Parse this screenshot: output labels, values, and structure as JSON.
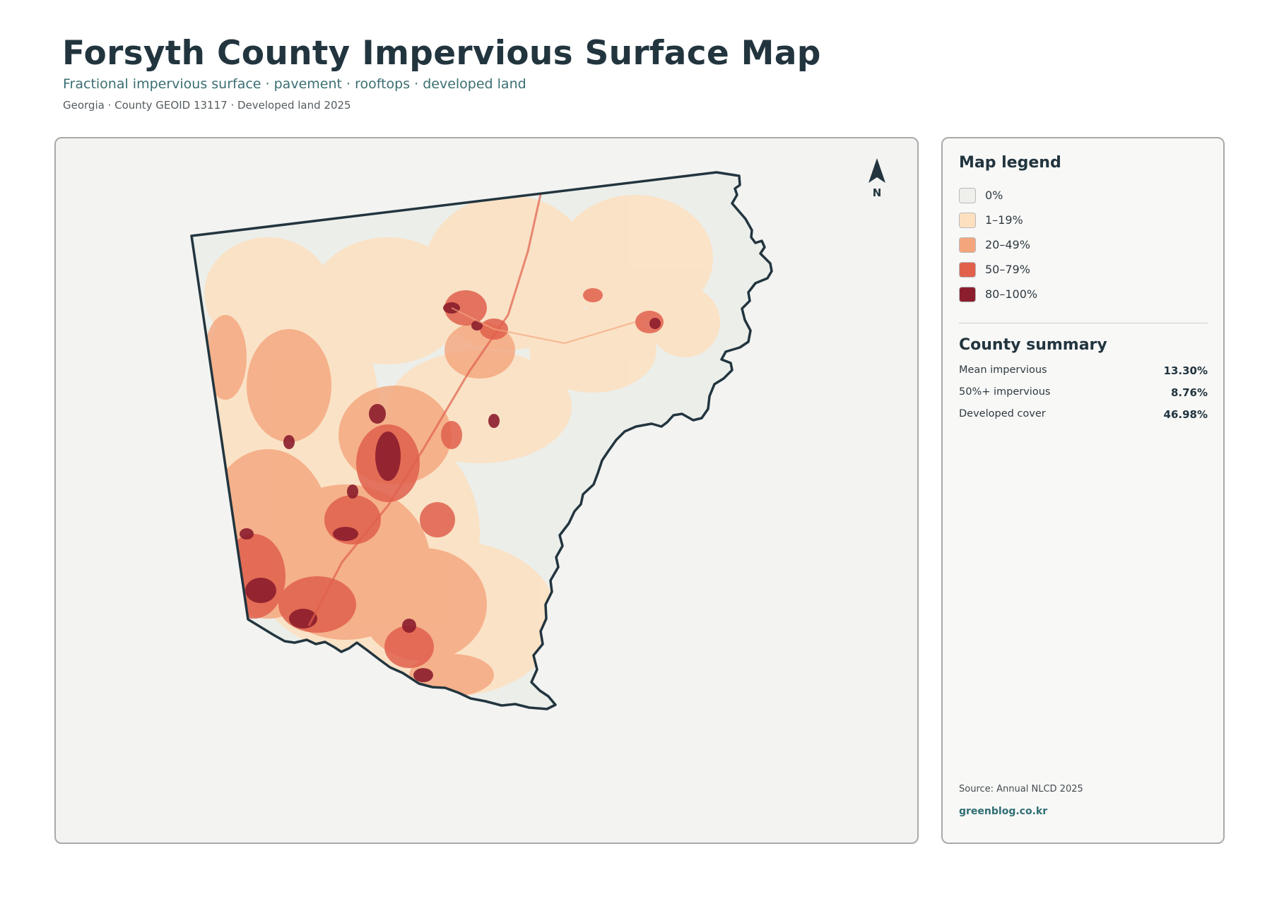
{
  "header": {
    "title": "Forsyth County Impervious Surface Map",
    "subtitle": "Fractional impervious surface · pavement · rooftops · developed land",
    "meta": "Georgia · County GEOID 13117 · Developed land 2025"
  },
  "map": {
    "north_label": "N",
    "outline_color": "#22353f",
    "background_color": "#f3f3f1"
  },
  "legend": {
    "title": "Map legend",
    "items": [
      {
        "label": "0%",
        "color": "#efefec"
      },
      {
        "label": "1–19%",
        "color": "#fde0c0"
      },
      {
        "label": "20–49%",
        "color": "#f4a57c"
      },
      {
        "label": "50–79%",
        "color": "#e0604c"
      },
      {
        "label": "80–100%",
        "color": "#8b1d2c"
      }
    ]
  },
  "summary": {
    "title": "County summary",
    "rows": [
      {
        "label": "Mean impervious",
        "value": "13.30%"
      },
      {
        "label": "50%+ impervious",
        "value": "8.76%"
      },
      {
        "label": "Developed cover",
        "value": "46.98%"
      }
    ]
  },
  "footer": {
    "source": "Source: Annual NLCD 2025",
    "site": "greenblog.co.kr"
  }
}
